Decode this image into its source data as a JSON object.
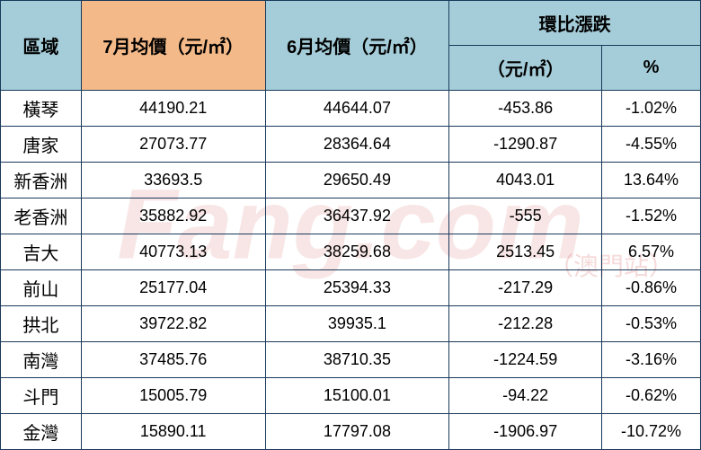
{
  "watermark": {
    "main": "Fang.com",
    "suffix": "（澳門站）"
  },
  "colors": {
    "header_blue": "#a5cdd9",
    "header_orange": "#f3b988",
    "border": "#1a3a5a",
    "text": "#000000",
    "background": "#ffffff"
  },
  "table": {
    "headers": {
      "region": "區域",
      "july_price": "7月均價（元/㎡）",
      "june_price": "6月均價（元/㎡）",
      "change_group": "環比漲跌",
      "change_value": "（元/㎡）",
      "change_pct": "%"
    },
    "header_colors": {
      "region": "#a5cdd9",
      "july_price": "#f3b988",
      "june_price": "#a5cdd9",
      "change_group": "#a5cdd9",
      "change_value": "#a5cdd9",
      "change_pct": "#a5cdd9"
    },
    "font_sizes": {
      "header": 20,
      "body": 18,
      "region": 20
    },
    "rows": [
      {
        "region": "橫琴",
        "july": "44190.21",
        "june": "44644.07",
        "diff": "-453.86",
        "pct": "-1.02%"
      },
      {
        "region": "唐家",
        "july": "27073.77",
        "june": "28364.64",
        "diff": "-1290.87",
        "pct": "-4.55%"
      },
      {
        "region": "新香洲",
        "july": "33693.5",
        "june": "29650.49",
        "diff": "4043.01",
        "pct": "13.64%"
      },
      {
        "region": "老香洲",
        "july": "35882.92",
        "june": "36437.92",
        "diff": "-555",
        "pct": "-1.52%"
      },
      {
        "region": "吉大",
        "july": "40773.13",
        "june": "38259.68",
        "diff": "2513.45",
        "pct": "6.57%"
      },
      {
        "region": "前山",
        "july": "25177.04",
        "june": "25394.33",
        "diff": "-217.29",
        "pct": "-0.86%"
      },
      {
        "region": "拱北",
        "july": "39722.82",
        "june": "39935.1",
        "diff": "-212.28",
        "pct": "-0.53%"
      },
      {
        "region": "南灣",
        "july": "37485.76",
        "june": "38710.35",
        "diff": "-1224.59",
        "pct": "-3.16%"
      },
      {
        "region": "斗門",
        "july": "15005.79",
        "june": "15100.01",
        "diff": "-94.22",
        "pct": "-0.62%"
      },
      {
        "region": "金灣",
        "july": "15890.11",
        "june": "17797.08",
        "diff": "-1906.97",
        "pct": "-10.72%"
      }
    ]
  }
}
